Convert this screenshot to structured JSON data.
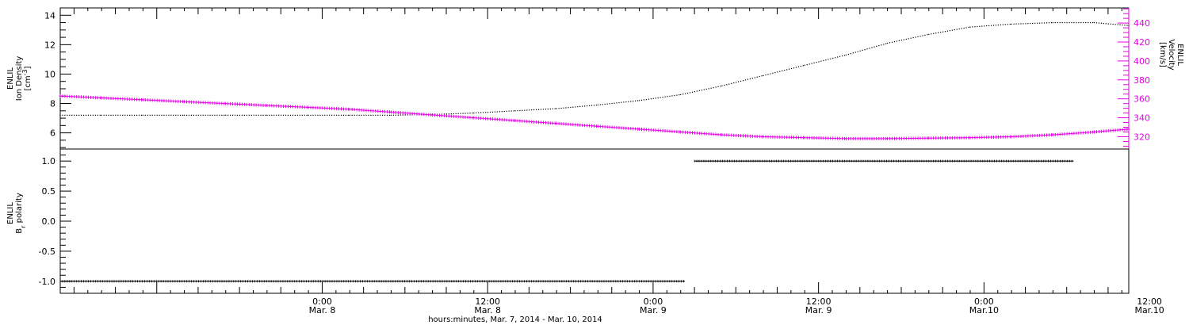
{
  "chart_data": [
    {
      "type": "line",
      "panel": "top",
      "xlabel": "hours:minutes, Mar.  7, 2014 - Mar. 10, 2014",
      "x_unit": "hours since Mar. 7, 2014 00:00",
      "xlim": [
        5.0,
        82.5
      ],
      "x_major_ticks": [
        {
          "x": 24,
          "time": "0:00",
          "date": "Mar. 8"
        },
        {
          "x": 36,
          "time": "12:00",
          "date": "Mar. 8"
        },
        {
          "x": 48,
          "time": "0:00",
          "date": "Mar. 9"
        },
        {
          "x": 60,
          "time": "12:00",
          "date": "Mar. 9"
        },
        {
          "x": 72,
          "time": "0:00",
          "date": "Mar.10"
        },
        {
          "x": 84,
          "time": "12:00",
          "date": "Mar.10"
        }
      ],
      "y_left": {
        "label_lines": [
          "ENLIL",
          "Ion Density",
          "[cm^-3]"
        ],
        "ylim": [
          4.9,
          14.5
        ],
        "ticks": [
          6,
          8,
          10,
          12,
          14
        ],
        "color": "#000000"
      },
      "y_right": {
        "label_lines": [
          "ENLIL",
          "Velocity",
          "[km/s]"
        ],
        "ylim": [
          307,
          456
        ],
        "ticks": [
          320,
          340,
          360,
          380,
          400,
          420,
          440
        ],
        "color": "#e600e6"
      },
      "series": [
        {
          "axis": "left",
          "color": "#000000",
          "x": [
            5.0,
            8.0,
            11.0,
            14.0,
            17.0,
            20.0,
            23.0,
            26.0,
            29.0,
            32.0,
            35.0,
            38.0,
            41.0,
            44.0,
            47.0,
            50.0,
            53.0,
            56.0,
            59.0,
            62.0,
            65.0,
            68.0,
            71.0,
            74.0,
            77.0,
            80.0,
            82.5
          ],
          "values": [
            7.2,
            7.2,
            7.2,
            7.2,
            7.2,
            7.2,
            7.2,
            7.2,
            7.2,
            7.25,
            7.35,
            7.5,
            7.65,
            7.9,
            8.2,
            8.6,
            9.2,
            9.9,
            10.6,
            11.3,
            12.1,
            12.7,
            13.2,
            13.4,
            13.5,
            13.5,
            13.3
          ]
        },
        {
          "axis": "right",
          "color": "#e600e6",
          "x": [
            5.0,
            8.0,
            11.0,
            14.0,
            17.0,
            20.0,
            23.0,
            26.0,
            29.0,
            32.0,
            35.0,
            38.0,
            41.0,
            44.0,
            47.0,
            50.0,
            53.0,
            56.0,
            59.0,
            62.0,
            65.0,
            68.0,
            71.0,
            74.0,
            77.0,
            80.0,
            82.5
          ],
          "values": [
            363,
            361,
            359,
            357,
            355,
            353,
            351,
            349,
            346,
            343,
            340,
            337,
            334,
            331,
            328,
            325,
            322,
            320,
            319,
            318,
            318,
            318.5,
            319,
            320,
            322,
            325,
            328
          ]
        }
      ]
    },
    {
      "type": "line",
      "panel": "bottom",
      "xlabel": "hours:minutes, Mar.  7, 2014 - Mar. 10, 2014",
      "xlim": [
        5.0,
        82.5
      ],
      "y_left": {
        "label_lines": [
          "ENLIL",
          "B_r polarity"
        ],
        "ylim": [
          -1.2,
          1.2
        ],
        "ticks": [
          -1.0,
          -0.5,
          0.0,
          0.5,
          1.0
        ],
        "tick_labels": [
          "-1.0",
          "-0.5",
          "0.0",
          "0.5",
          "1.0"
        ],
        "color": "#000000"
      },
      "series": [
        {
          "color": "#000000",
          "x": [
            5.0,
            50.3,
            51.0,
            78.5
          ],
          "values": [
            -1.0,
            -1.0,
            1.0,
            1.0
          ],
          "segments": [
            [
              5.0,
              50.3,
              -1.0
            ],
            [
              51.0,
              78.5,
              1.0
            ]
          ]
        }
      ]
    }
  ]
}
